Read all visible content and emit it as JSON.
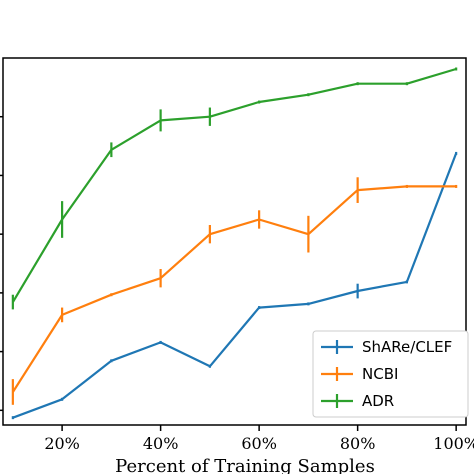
{
  "chart_data": {
    "type": "line",
    "xlabel": "Percent of Training Samples",
    "ylabel": "",
    "x": [
      10,
      20,
      30,
      40,
      50,
      60,
      70,
      80,
      90,
      100
    ],
    "x_tick_values": [
      20,
      40,
      60,
      80,
      100
    ],
    "x_tick_labels": [
      "20%",
      "40%",
      "60%",
      "80%",
      "100%"
    ],
    "xlim": [
      8,
      102
    ],
    "ylim": [
      0,
      1
    ],
    "legend_position": "bottom-right",
    "grid": false,
    "series": [
      {
        "name": "ShARe/CLEF",
        "color": "#1f77b4",
        "values": [
          0.02,
          0.07,
          0.175,
          0.225,
          0.16,
          0.32,
          0.33,
          0.365,
          0.39,
          0.74
        ],
        "errors": [
          0,
          0,
          0,
          0,
          0,
          0,
          0,
          0.02,
          0,
          0
        ]
      },
      {
        "name": "NCBI",
        "color": "#ff7f0e",
        "values": [
          0.09,
          0.3,
          0.355,
          0.4,
          0.52,
          0.56,
          0.52,
          0.64,
          0.65,
          0.65
        ],
        "errors": [
          0.035,
          0.02,
          0,
          0.025,
          0.025,
          0.025,
          0.05,
          0.035,
          0,
          0
        ]
      },
      {
        "name": "ADR",
        "color": "#2ca02c",
        "values": [
          0.335,
          0.56,
          0.75,
          0.83,
          0.84,
          0.88,
          0.9,
          0.93,
          0.93,
          0.97
        ],
        "errors": [
          0.02,
          0.05,
          0.02,
          0.03,
          0.025,
          0,
          0,
          0,
          0,
          0
        ]
      }
    ]
  }
}
